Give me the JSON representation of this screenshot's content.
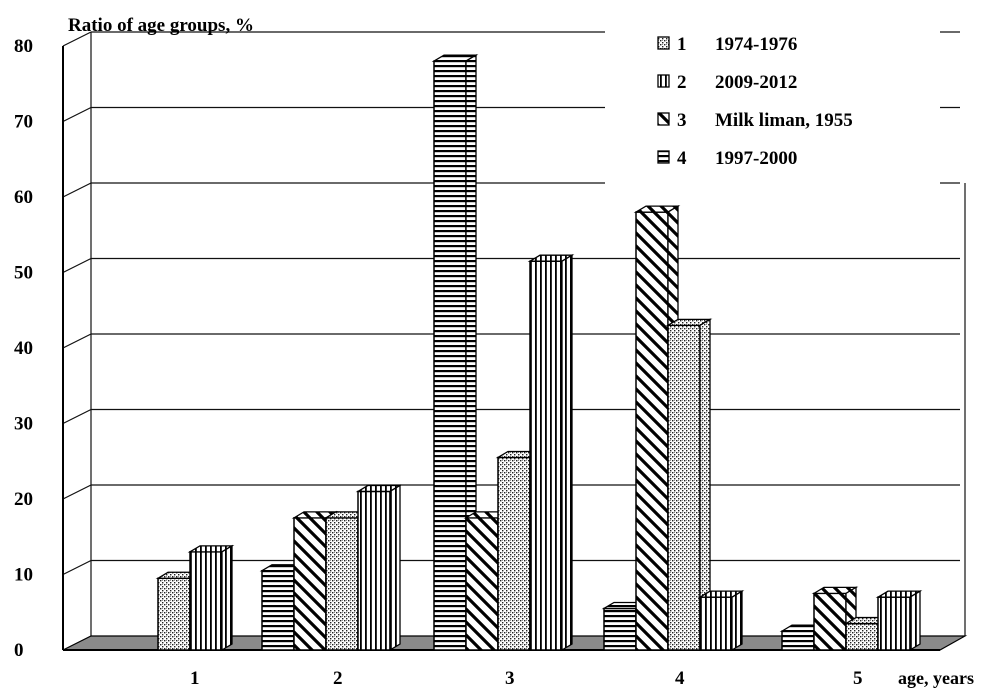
{
  "chart_data": {
    "type": "bar",
    "title": "",
    "ylabel": "Ratio of age groups, %",
    "xlabel": "age, years",
    "ylim": [
      0,
      80
    ],
    "yticks": [
      0,
      10,
      20,
      30,
      40,
      50,
      60,
      70,
      80
    ],
    "categories": [
      "1",
      "2",
      "3",
      "4",
      "5"
    ],
    "legend_position": "top-right",
    "grid": true,
    "three_d": true,
    "series": [
      {
        "id": "s4",
        "name": "1997-2000",
        "legend_num": "4",
        "pattern": "horizontal",
        "values": [
          0,
          10.5,
          78,
          5.5,
          2.5
        ]
      },
      {
        "id": "s3",
        "name": "Milk  liman, 1955",
        "legend_num": "3",
        "pattern": "diagonal",
        "values": [
          0,
          17.5,
          17.5,
          58,
          7.5
        ]
      },
      {
        "id": "s1",
        "name": "1974-1976",
        "legend_num": "1",
        "pattern": "dotted",
        "values": [
          9.5,
          17.5,
          25.5,
          43,
          3.5
        ]
      },
      {
        "id": "s2",
        "name": "2009-2012",
        "legend_num": "2",
        "pattern": "vertical",
        "values": [
          13,
          21,
          51.5,
          7,
          7
        ]
      }
    ],
    "legend_order": [
      "s1",
      "s2",
      "s3",
      "s4"
    ]
  }
}
